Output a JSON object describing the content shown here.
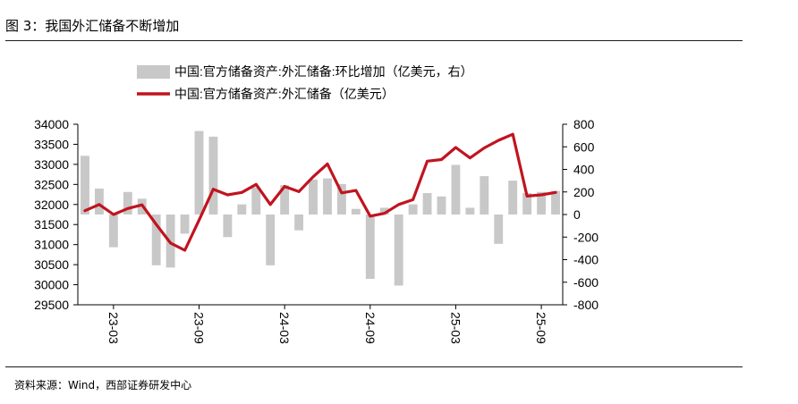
{
  "figure": {
    "title": "图 3：我国外汇储备不断增加",
    "source": "资料来源：Wind，西部证券研发中心"
  },
  "colors": {
    "bar": "#c8c8c8",
    "line": "#c0141f",
    "axis": "#000000",
    "rule": "#1a1a1a"
  },
  "chart_data": {
    "type": "bar+line",
    "legend": [
      "中国:官方储备资产:外汇储备:环比增加（亿美元，右）",
      "中国:官方储备资产:外汇储备（亿美元）"
    ],
    "legend_position": "top",
    "categories": [
      "2023-01",
      "2023-02",
      "2023-03",
      "2023-04",
      "2023-05",
      "2023-06",
      "2023-07",
      "2023-08",
      "2023-09",
      "2023-10",
      "2023-11",
      "2023-12",
      "2024-01",
      "2024-02",
      "2024-03",
      "2024-04",
      "2024-05",
      "2024-06",
      "2024-07",
      "2024-08",
      "2024-09",
      "2024-10",
      "2024-11",
      "2024-12",
      "2025-01",
      "2025-02",
      "2025-03",
      "2025-04",
      "2025-05",
      "2025-06",
      "2025-07",
      "2025-08",
      "2025-09",
      "2025-10"
    ],
    "x_tick_labels": [
      "23-03",
      "23-09",
      "24-03",
      "24-09",
      "25-03",
      "25-09"
    ],
    "series": [
      {
        "name": "中国:官方储备资产:外汇储备:环比增加（亿美元，右）",
        "type": "bar",
        "axis": "right",
        "values": [
          520,
          230,
          -290,
          200,
          140,
          -450,
          -470,
          -170,
          740,
          690,
          -200,
          90,
          240,
          -450,
          260,
          -140,
          310,
          320,
          270,
          50,
          -570,
          60,
          -630,
          90,
          190,
          160,
          440,
          60,
          340,
          -260,
          300,
          190,
          200,
          210
        ]
      },
      {
        "name": "中国:官方储备资产:外汇储备（亿美元）",
        "type": "line",
        "axis": "left",
        "values": [
          31845,
          32000,
          31750,
          31900,
          31990,
          31500,
          31040,
          30860,
          31610,
          32380,
          32240,
          32300,
          32500,
          32000,
          32450,
          32320,
          32690,
          33010,
          32290,
          32350,
          31710,
          31780,
          32000,
          32120,
          33080,
          33120,
          33420,
          33160,
          33410,
          33600,
          33750,
          32210,
          32240,
          32300
        ]
      }
    ],
    "y_left": {
      "min": 29500,
      "max": 34000,
      "step": 500,
      "tick_labels": [
        "29500",
        "30000",
        "30500",
        "31000",
        "31500",
        "32000",
        "32500",
        "33000",
        "33500",
        "34000"
      ]
    },
    "y_right": {
      "min": -800,
      "max": 800,
      "step": 200,
      "tick_labels": [
        "-800",
        "-600",
        "-400",
        "-200",
        "0",
        "200",
        "400",
        "600",
        "800"
      ]
    }
  }
}
